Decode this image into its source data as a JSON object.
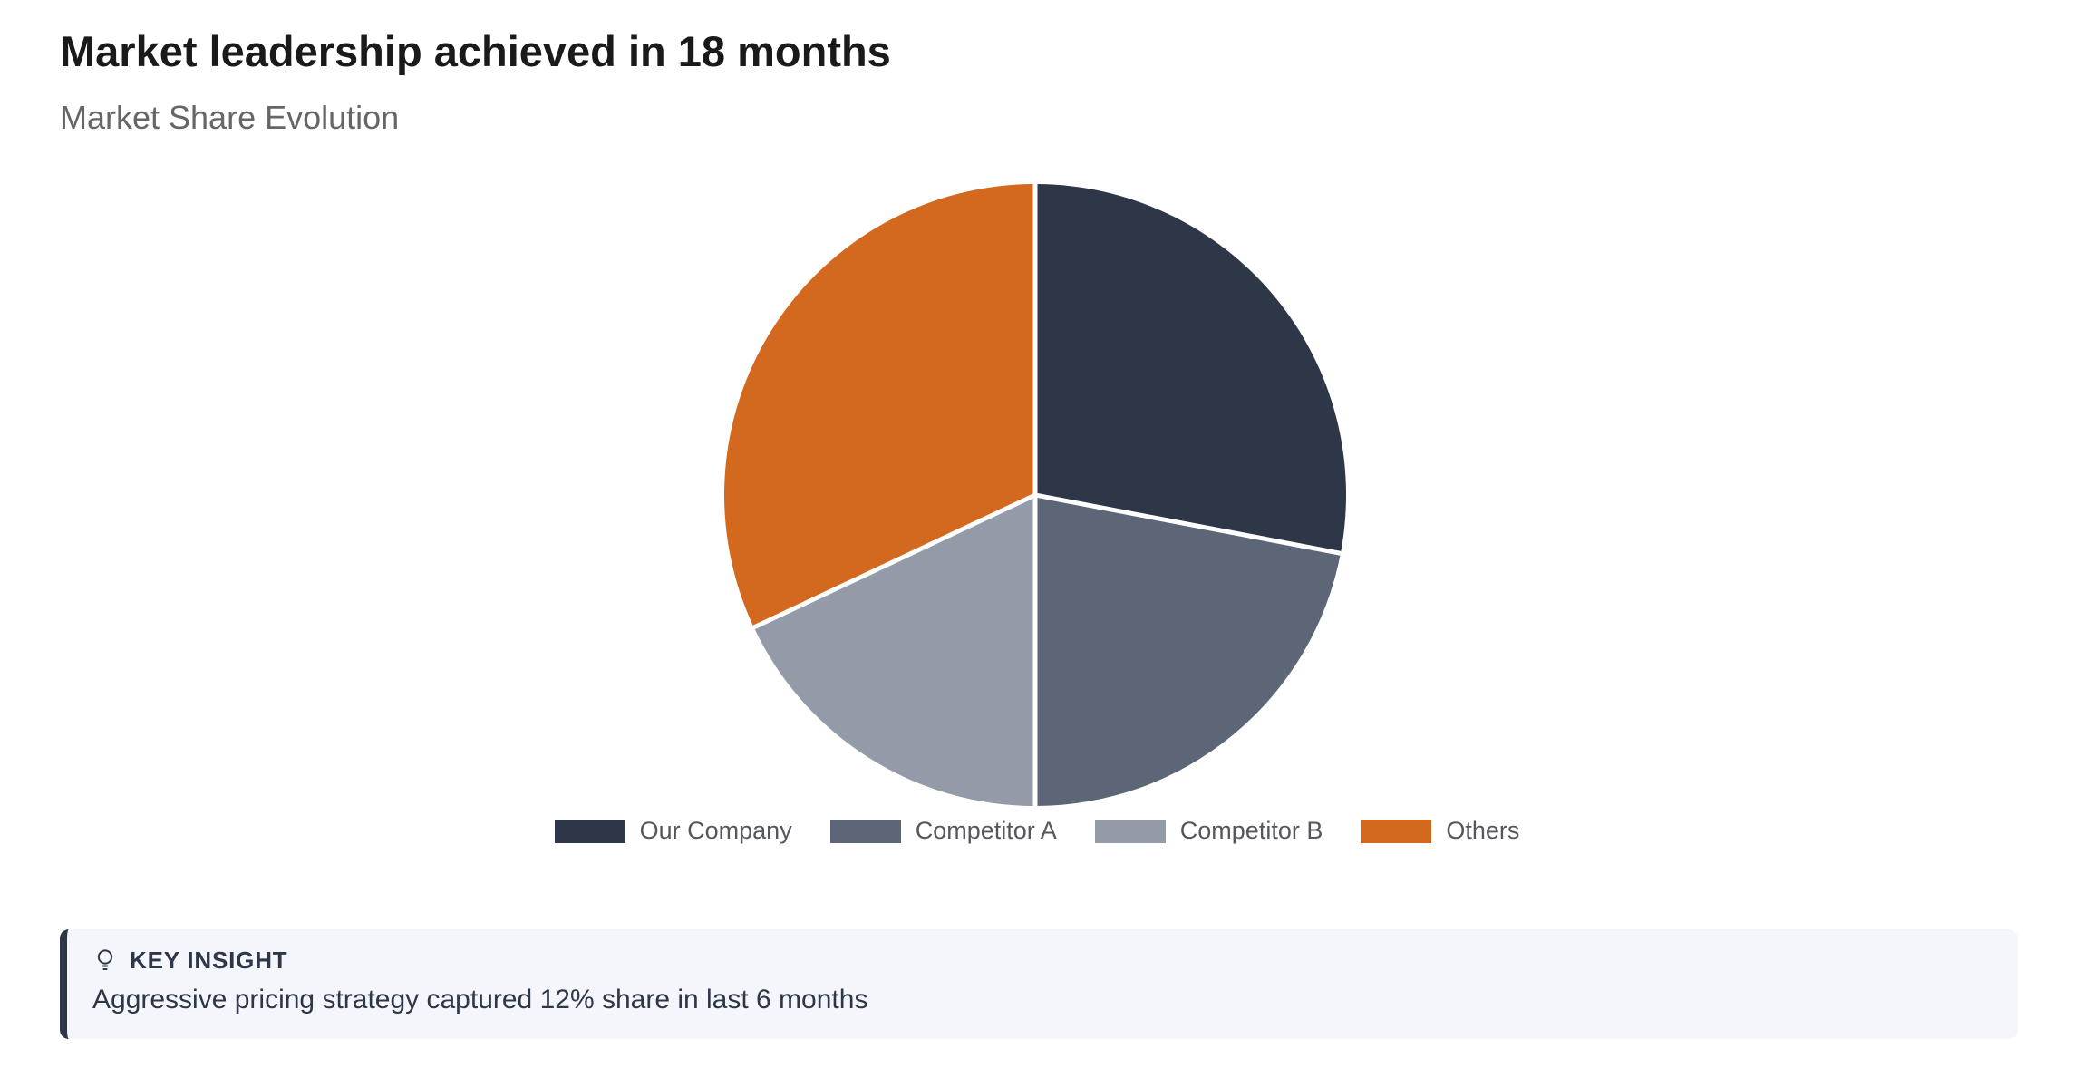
{
  "page": {
    "title": "Market leadership achieved in 18 months",
    "subtitle": "Market Share Evolution"
  },
  "chart_data": {
    "type": "pie",
    "title": "Market Share Evolution",
    "labels": [
      "Our Company",
      "Competitor A",
      "Competitor B",
      "Others"
    ],
    "values": [
      28,
      22,
      18,
      32
    ],
    "unit": "percent-market-share",
    "colors": [
      "#2d3748",
      "#5d6677",
      "#939ba8",
      "#d2691e"
    ],
    "start_angle_deg": 0,
    "direction": "clockwise",
    "slice_border_color": "#ffffff",
    "legend_position": "bottom",
    "data_labels_shown": false
  },
  "insight": {
    "icon": "lightbulb-icon",
    "label": "KEY INSIGHT",
    "text": "Aggressive pricing strategy captured 12% share in last 6 months",
    "accent_color": "#2d3748",
    "background_color": "#f5f6fb"
  }
}
